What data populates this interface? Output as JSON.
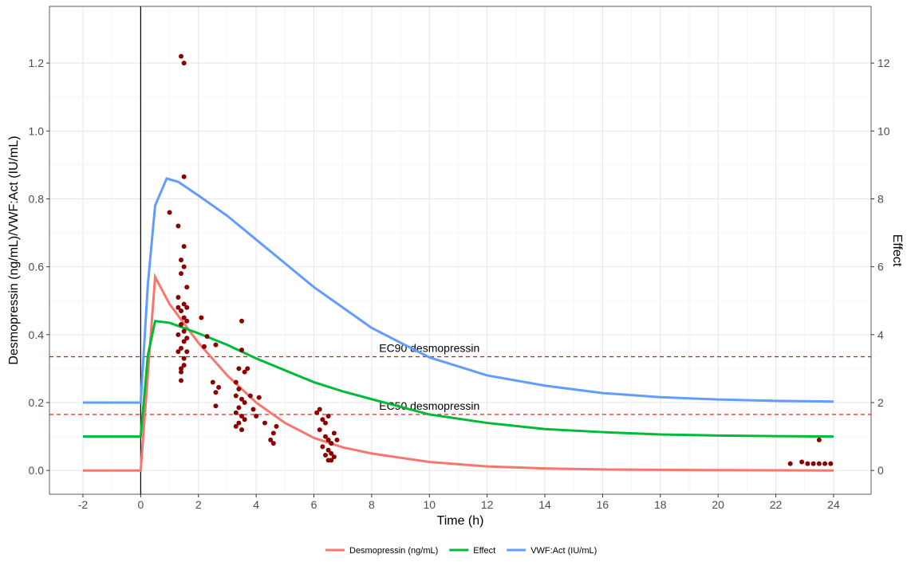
{
  "chart_data": {
    "type": "line",
    "xlabel": "Time (h)",
    "ylabel": "Desmopressin (ng/mL)/VWF:Act (IU/mL)",
    "y2label": "Effect",
    "xlim": [
      -3.16,
      25.3
    ],
    "xticks": [
      -2,
      0,
      2,
      4,
      6,
      8,
      10,
      12,
      14,
      16,
      18,
      20,
      22,
      24
    ],
    "ylim": [
      -0.07,
      1.367
    ],
    "yticks": [
      {
        "value": 0,
        "label": "0.0"
      },
      0.2,
      0.4,
      0.6,
      0.8,
      {
        "value": 1,
        "label": "1.0"
      },
      1.2
    ],
    "y2lim": [
      -0.7,
      13.67
    ],
    "y2ticks": [
      0,
      2,
      4,
      6,
      8,
      10,
      12
    ],
    "grid": true,
    "legend": "bottom",
    "series": [
      {
        "name": "Desmopressin (ng/mL)",
        "color": "#F8766D",
        "x": [
          -2,
          0,
          0.5,
          1,
          2,
          3,
          4,
          5,
          6,
          7,
          8,
          10,
          12,
          14,
          16,
          18,
          20,
          22,
          24
        ],
        "values": [
          0,
          0,
          0.57,
          0.49,
          0.376,
          0.28,
          0.2,
          0.14,
          0.096,
          0.068,
          0.05,
          0.025,
          0.012,
          0.006,
          0.003,
          0.002,
          0.001,
          0.0005,
          0
        ]
      },
      {
        "name": "Effect",
        "color": "#00BA38",
        "axis": "y2",
        "x": [
          -2,
          0,
          0.25,
          0.5,
          1,
          2,
          3,
          4,
          5,
          6,
          7,
          8,
          10,
          12,
          14,
          16,
          18,
          20,
          22,
          24
        ],
        "values": [
          1,
          1,
          3.4,
          4.4,
          4.35,
          4.04,
          3.7,
          3.3,
          2.95,
          2.6,
          2.33,
          2.1,
          1.65,
          1.4,
          1.22,
          1.13,
          1.06,
          1.03,
          1.01,
          1.0
        ]
      },
      {
        "name": "VWF:Act (IU/mL)",
        "color": "#619CFF",
        "x": [
          -2,
          0,
          0.25,
          0.5,
          0.9,
          1.3,
          2,
          3,
          4,
          5,
          6,
          7,
          8,
          10,
          12,
          14,
          16,
          18,
          20,
          22,
          24
        ],
        "values": [
          0.2,
          0.2,
          0.55,
          0.78,
          0.86,
          0.85,
          0.81,
          0.75,
          0.68,
          0.61,
          0.54,
          0.48,
          0.42,
          0.333,
          0.28,
          0.25,
          0.228,
          0.216,
          0.209,
          0.205,
          0.203
        ]
      }
    ],
    "points": {
      "color": "#8B0000",
      "x": [
        1.4,
        1.5,
        1.5,
        1.0,
        1.3,
        1.5,
        1.4,
        1.5,
        1.4,
        1.6,
        1.3,
        1.5,
        1.6,
        1.4,
        1.3,
        1.5,
        1.6,
        1.4,
        1.5,
        1.3,
        1.6,
        1.5,
        1.4,
        1.3,
        1.6,
        1.5,
        1.4,
        1.5,
        1.4,
        1.4,
        2.1,
        2.3,
        2.2,
        2.6,
        2.5,
        2.7,
        2.6,
        2.6,
        3.4,
        3.5,
        3.6,
        3.5,
        3.3,
        3.4,
        3.3,
        3.5,
        3.6,
        3.4,
        3.3,
        3.5,
        3.4,
        3.3,
        3.5,
        3.6,
        3.8,
        3.9,
        3.7,
        4.1,
        4.0,
        4.3,
        4.5,
        4.6,
        4.7,
        4.6,
        6.1,
        6.2,
        6.3,
        6.4,
        6.5,
        6.2,
        6.4,
        6.5,
        6.6,
        6.3,
        6.5,
        6.6,
        6.7,
        6.6,
        6.8,
        6.7,
        6.4,
        6.5,
        22.5,
        22.9,
        23.1,
        23.3,
        23.5,
        23.7,
        23.9,
        23.5
      ],
      "values": [
        1.22,
        1.2,
        0.865,
        0.76,
        0.72,
        0.66,
        0.62,
        0.6,
        0.58,
        0.54,
        0.51,
        0.49,
        0.48,
        0.47,
        0.48,
        0.45,
        0.44,
        0.43,
        0.41,
        0.4,
        0.39,
        0.38,
        0.36,
        0.35,
        0.35,
        0.33,
        0.3,
        0.31,
        0.29,
        0.265,
        0.45,
        0.395,
        0.365,
        0.37,
        0.26,
        0.245,
        0.23,
        0.19,
        0.3,
        0.44,
        0.29,
        0.355,
        0.26,
        0.24,
        0.22,
        0.21,
        0.2,
        0.185,
        0.17,
        0.16,
        0.14,
        0.13,
        0.12,
        0.15,
        0.22,
        0.18,
        0.3,
        0.215,
        0.16,
        0.14,
        0.09,
        0.08,
        0.13,
        0.11,
        0.17,
        0.18,
        0.15,
        0.14,
        0.16,
        0.12,
        0.1,
        0.09,
        0.08,
        0.07,
        0.06,
        0.05,
        0.04,
        0.03,
        0.09,
        0.11,
        0.045,
        0.03,
        0.02,
        0.025,
        0.02,
        0.02,
        0.02,
        0.02,
        0.02,
        0.09
      ]
    },
    "reference_lines": [
      {
        "label": "EC90 desmopressin",
        "value": 0.335,
        "label_x": 10,
        "color": "#FF0000"
      },
      {
        "label": "EC50 desmopressin",
        "value": 0.165,
        "label_x": 10,
        "color": "#FF0000"
      }
    ],
    "vlines": [
      0
    ]
  }
}
